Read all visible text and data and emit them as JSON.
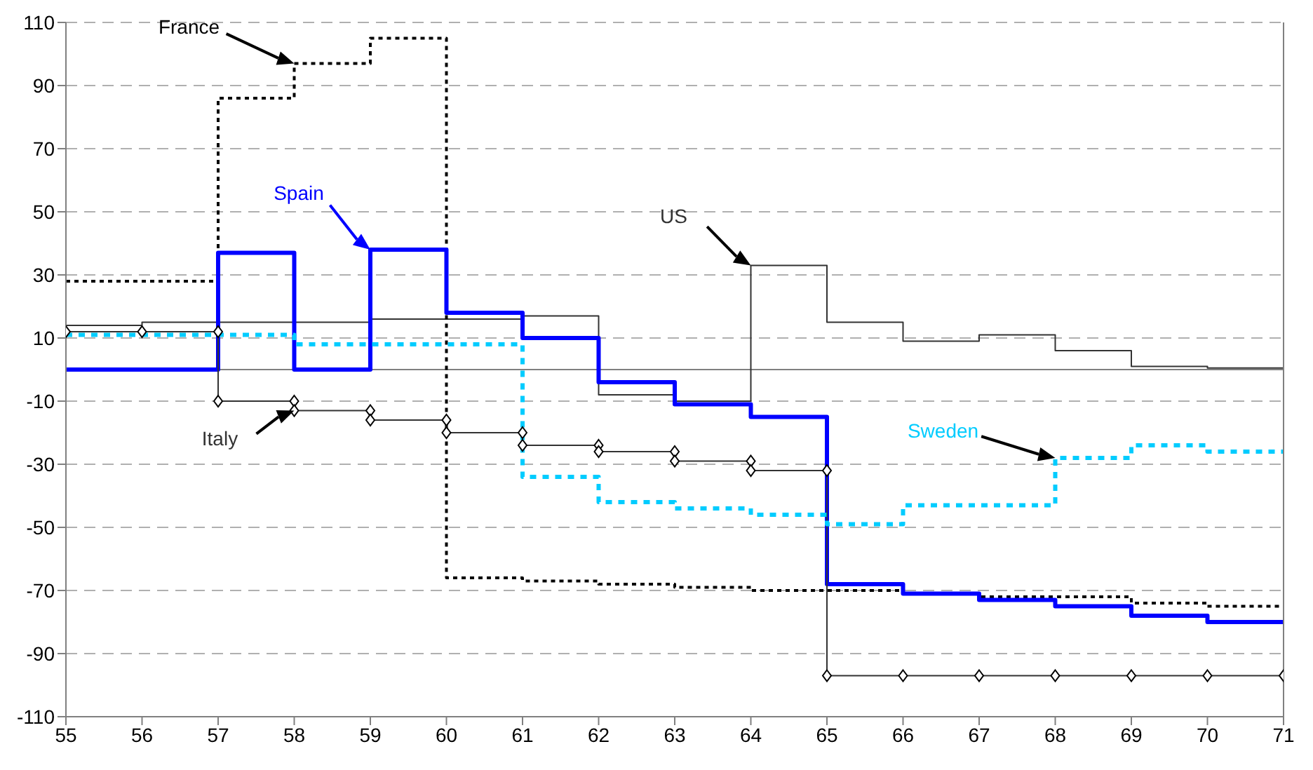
{
  "chart_data": {
    "type": "step",
    "x": [
      55,
      56,
      57,
      58,
      59,
      60,
      61,
      62,
      63,
      64,
      65,
      66,
      67,
      68,
      69,
      70,
      71
    ],
    "series": [
      {
        "name": "US",
        "color": "#333333",
        "line_style": "solid",
        "values": [
          14,
          15,
          15,
          15,
          16,
          16,
          17,
          -8,
          -10,
          33,
          15,
          9,
          11,
          6,
          1,
          0.5,
          0.5
        ]
      },
      {
        "name": "France",
        "color": "#000000",
        "line_style": "dotted",
        "values": [
          28,
          28,
          86,
          97,
          105,
          -66,
          -67,
          -68,
          -69,
          -70,
          -70,
          -71,
          -72,
          -72,
          -74,
          -75,
          -75
        ]
      },
      {
        "name": "Spain",
        "color": "#0000ff",
        "line_style": "solid",
        "values": [
          0,
          0,
          37,
          0,
          38,
          18,
          10,
          -4,
          -11,
          -15,
          -68,
          -71,
          -73,
          -75,
          -78,
          -80,
          -80
        ]
      },
      {
        "name": "Italy",
        "type": "line",
        "marker": "diamond",
        "color": "#333333",
        "line_style": "solid",
        "x": [
          55,
          56,
          57,
          57,
          58,
          58,
          59,
          59,
          60,
          60,
          61,
          61,
          62,
          62,
          63,
          63,
          64,
          64,
          65,
          65,
          66,
          67,
          68,
          69,
          70,
          71
        ],
        "values": [
          12,
          12,
          12,
          -10,
          -10,
          -13,
          -13,
          -16,
          -16,
          -20,
          -20,
          -24,
          -24,
          -26,
          -26,
          -29,
          -29,
          -32,
          -32,
          -97,
          -97,
          -97,
          -97,
          -97,
          -97,
          -97
        ]
      },
      {
        "name": "Sweden",
        "color": "#00ccff",
        "line_style": "dotted",
        "values": [
          11,
          11,
          11,
          8,
          8,
          8,
          -34,
          -42,
          -44,
          -46,
          -49,
          -43,
          -43,
          -28,
          -24,
          -26,
          -26
        ]
      }
    ],
    "xlim": [
      55,
      71
    ],
    "xticks": [
      55,
      56,
      57,
      58,
      59,
      60,
      61,
      62,
      63,
      64,
      65,
      66,
      67,
      68,
      69,
      70,
      71
    ],
    "ylim": [
      -110,
      110
    ],
    "yticks": [
      -110,
      -90,
      -70,
      -50,
      -30,
      -10,
      10,
      30,
      50,
      70,
      90,
      110
    ],
    "grid": "y",
    "ref_lines": [
      {
        "axis": "y",
        "value": 0,
        "color": "#808080",
        "line_style": "solid"
      }
    ]
  }
}
